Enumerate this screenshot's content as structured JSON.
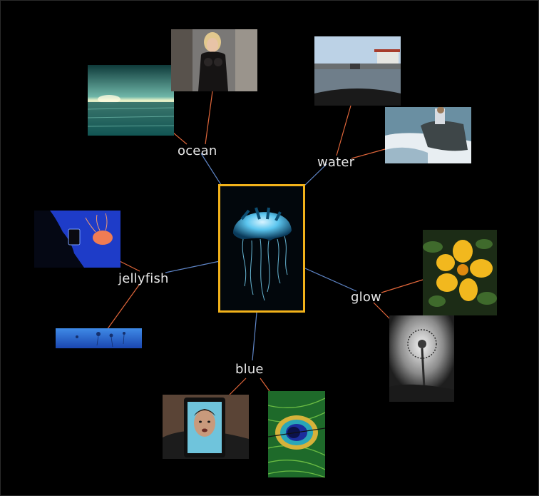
{
  "center": {
    "image": "glowing-jellyfish-photo",
    "border_color": "#f2b21a"
  },
  "tags": [
    {
      "id": "ocean",
      "label": "ocean",
      "images": [
        "sunset-sea-photo",
        "blonde-avatar-photo"
      ]
    },
    {
      "id": "water",
      "label": "water",
      "images": [
        "flooded-street-photo",
        "river-rocks-photo"
      ]
    },
    {
      "id": "jellyfish",
      "label": "jellyfish",
      "images": [
        "aquarium-jellyfish-photo",
        "blue-aquarium-strip-photo"
      ]
    },
    {
      "id": "glow",
      "label": "glow",
      "images": [
        "yellow-flower-photo",
        "dandelion-photo"
      ]
    },
    {
      "id": "blue",
      "label": "blue",
      "images": [
        "face-on-screen-photo",
        "peacock-feather-photo"
      ]
    }
  ],
  "colors": {
    "inner_link": "#5f86c8",
    "outer_link": "#e0663a",
    "label_text": "#e8e8e8",
    "background": "#000000"
  }
}
